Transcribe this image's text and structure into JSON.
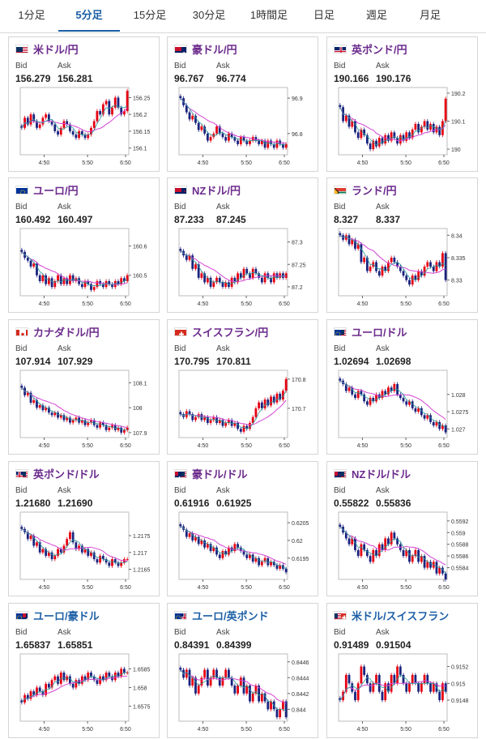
{
  "tabs": [
    {
      "label": "1分足",
      "active": false
    },
    {
      "label": "5分足",
      "active": true
    },
    {
      "label": "15分足",
      "active": false
    },
    {
      "label": "30分足",
      "active": false
    },
    {
      "label": "1時間足",
      "active": false
    },
    {
      "label": "日足",
      "active": false
    },
    {
      "label": "週足",
      "active": false
    },
    {
      "label": "月足",
      "active": false
    }
  ],
  "labels": {
    "bid": "Bid",
    "ask": "Ask"
  },
  "x_ticks": [
    "4:50",
    "5:50",
    "6:50"
  ],
  "colors": {
    "up": "#e60012",
    "down": "#1a237e",
    "ma": "#d445d4",
    "ma2": "#2a9a9a",
    "tab_active": "#1c5fa6",
    "pair_purple": "#6b2a8c",
    "pair_blue": "#1c5fa6"
  },
  "pairs": [
    {
      "name": "米ドル/円",
      "bid": "156.279",
      "ask": "156.281",
      "flag": "us",
      "name_color": "purple",
      "y_ticks": [
        "156.25",
        "156.2",
        "156.15",
        "156.1"
      ],
      "chart_data": {
        "type": "candlestick",
        "ylim": [
          156.08,
          156.28
        ],
        "closes": [
          156.16,
          156.19,
          156.17,
          156.2,
          156.18,
          156.16,
          156.17,
          156.19,
          156.2,
          156.18,
          156.17,
          156.15,
          156.14,
          156.16,
          156.18,
          156.17,
          156.15,
          156.14,
          156.13,
          156.15,
          156.14,
          156.13,
          156.14,
          156.16,
          156.18,
          156.21,
          156.2,
          156.23,
          156.24,
          156.2,
          156.22,
          156.25,
          156.22,
          156.2,
          156.21,
          156.27
        ]
      }
    },
    {
      "name": "豪ドル/円",
      "bid": "96.767",
      "ask": "96.774",
      "flag": "au",
      "name_color": "purple",
      "y_ticks": [
        "96.9",
        "96.8"
      ],
      "chart_data": {
        "type": "candlestick",
        "ylim": [
          96.74,
          96.93
        ],
        "closes": [
          96.9,
          96.88,
          96.86,
          96.84,
          96.85,
          96.83,
          96.81,
          96.82,
          96.8,
          96.78,
          96.79,
          96.8,
          96.82,
          96.8,
          96.79,
          96.78,
          96.8,
          96.79,
          96.78,
          96.77,
          96.79,
          96.78,
          96.77,
          96.78,
          96.79,
          96.78,
          96.77,
          96.78,
          96.76,
          96.78,
          96.77,
          96.76,
          96.78,
          96.77,
          96.76,
          96.77
        ]
      }
    },
    {
      "name": "英ポンド/円",
      "bid": "190.166",
      "ask": "190.176",
      "flag": "uk",
      "name_color": "purple",
      "y_ticks": [
        "190.2",
        "190.1",
        "190"
      ],
      "chart_data": {
        "type": "candlestick",
        "ylim": [
          189.98,
          190.22
        ],
        "closes": [
          190.15,
          190.1,
          190.12,
          190.08,
          190.1,
          190.06,
          190.04,
          190.07,
          190.05,
          190.02,
          190.0,
          190.03,
          190.01,
          190.04,
          190.02,
          190.05,
          190.03,
          190.06,
          190.04,
          190.02,
          190.05,
          190.03,
          190.06,
          190.04,
          190.07,
          190.09,
          190.06,
          190.08,
          190.1,
          190.07,
          190.09,
          190.06,
          190.08,
          190.05,
          190.1,
          190.18
        ]
      }
    },
    {
      "name": "ユーロ/円",
      "bid": "160.492",
      "ask": "160.497",
      "flag": "eu",
      "name_color": "purple",
      "y_ticks": [
        "160.6",
        "160.5"
      ],
      "chart_data": {
        "type": "candlestick",
        "ylim": [
          160.43,
          160.66
        ],
        "closes": [
          160.58,
          160.56,
          160.55,
          160.53,
          160.54,
          160.5,
          160.48,
          160.5,
          160.47,
          160.49,
          160.46,
          160.48,
          160.5,
          160.47,
          160.49,
          160.47,
          160.5,
          160.48,
          160.49,
          160.47,
          160.46,
          160.48,
          160.47,
          160.45,
          160.46,
          160.48,
          160.47,
          160.46,
          160.48,
          160.47,
          160.46,
          160.48,
          160.47,
          160.49,
          160.48,
          160.5
        ]
      }
    },
    {
      "name": "NZドル/円",
      "bid": "87.233",
      "ask": "87.245",
      "flag": "nz",
      "name_color": "purple",
      "y_ticks": [
        "87.3",
        "87.25",
        "87.2"
      ],
      "chart_data": {
        "type": "candlestick",
        "ylim": [
          87.18,
          87.33
        ],
        "closes": [
          87.28,
          87.27,
          87.26,
          87.27,
          87.24,
          87.25,
          87.22,
          87.23,
          87.21,
          87.22,
          87.2,
          87.21,
          87.22,
          87.21,
          87.2,
          87.21,
          87.2,
          87.22,
          87.21,
          87.23,
          87.22,
          87.24,
          87.23,
          87.22,
          87.24,
          87.23,
          87.22,
          87.21,
          87.23,
          87.22,
          87.21,
          87.23,
          87.22,
          87.23,
          87.22,
          87.23
        ]
      }
    },
    {
      "name": "ランド/円",
      "bid": "8.327",
      "ask": "8.337",
      "flag": "za",
      "name_color": "purple",
      "y_ticks": [
        "8.34",
        "8.335",
        "8.33"
      ],
      "chart_data": {
        "type": "candlestick",
        "ylim": [
          8.3265,
          8.3415
        ],
        "closes": [
          8.34,
          8.339,
          8.34,
          8.338,
          8.339,
          8.337,
          8.338,
          8.334,
          8.335,
          8.332,
          8.333,
          8.334,
          8.332,
          8.331,
          8.333,
          8.332,
          8.334,
          8.335,
          8.334,
          8.333,
          8.332,
          8.331,
          8.33,
          8.329,
          8.331,
          8.33,
          8.332,
          8.331,
          8.333,
          8.334,
          8.333,
          8.332,
          8.334,
          8.333,
          8.336,
          8.33
        ]
      }
    },
    {
      "name": "カナダドル/円",
      "bid": "107.914",
      "ask": "107.929",
      "flag": "ca",
      "name_color": "purple",
      "y_ticks": [
        "108.1",
        "108",
        "107.9"
      ],
      "chart_data": {
        "type": "candlestick",
        "ylim": [
          107.88,
          108.15
        ],
        "closes": [
          108.08,
          108.05,
          108.06,
          108.02,
          108.03,
          108.0,
          108.01,
          107.99,
          108.0,
          107.98,
          107.97,
          107.98,
          107.96,
          107.97,
          107.95,
          107.96,
          107.94,
          107.95,
          107.96,
          107.94,
          107.95,
          107.93,
          107.94,
          107.95,
          107.93,
          107.92,
          107.94,
          107.93,
          107.91,
          107.92,
          107.93,
          107.91,
          107.92,
          107.9,
          107.91,
          107.92
        ]
      }
    },
    {
      "name": "スイスフラン/円",
      "bid": "170.795",
      "ask": "170.811",
      "flag": "ch",
      "name_color": "purple",
      "y_ticks": [
        "170.8",
        "170.7"
      ],
      "chart_data": {
        "type": "candlestick",
        "ylim": [
          170.6,
          170.83
        ],
        "closes": [
          170.68,
          170.67,
          170.69,
          170.68,
          170.66,
          170.67,
          170.68,
          170.66,
          170.67,
          170.65,
          170.66,
          170.67,
          170.65,
          170.66,
          170.64,
          170.65,
          170.66,
          170.64,
          170.65,
          170.63,
          170.62,
          170.64,
          170.63,
          170.65,
          170.67,
          170.7,
          170.72,
          170.7,
          170.73,
          170.71,
          170.74,
          170.72,
          170.75,
          170.73,
          170.76,
          170.8
        ]
      }
    },
    {
      "name": "ユーロ/ドル",
      "bid": "1.02694",
      "ask": "1.02698",
      "flag": "eu-us",
      "name_color": "purple",
      "y_ticks": [
        "1.028",
        "1.0275",
        "1.027"
      ],
      "chart_data": {
        "type": "candlestick",
        "ylim": [
          1.02675,
          1.0287
        ],
        "closes": [
          1.0284,
          1.0283,
          1.0281,
          1.0282,
          1.028,
          1.0279,
          1.0281,
          1.028,
          1.0278,
          1.0277,
          1.0279,
          1.0278,
          1.028,
          1.0279,
          1.0281,
          1.028,
          1.0282,
          1.0281,
          1.0283,
          1.028,
          1.0279,
          1.0278,
          1.0277,
          1.0278,
          1.0276,
          1.0275,
          1.0276,
          1.0274,
          1.0273,
          1.0274,
          1.0272,
          1.0271,
          1.0272,
          1.027,
          1.0271,
          1.0269
        ]
      }
    },
    {
      "name": "英ポンド/ドル",
      "bid": "1.21680",
      "ask": "1.21690",
      "flag": "uk-us",
      "name_color": "purple",
      "y_ticks": [
        "1.2175",
        "1.217",
        "1.2165"
      ],
      "chart_data": {
        "type": "candlestick",
        "ylim": [
          1.2162,
          1.2182
        ],
        "closes": [
          1.2177,
          1.2176,
          1.2174,
          1.2175,
          1.2172,
          1.2173,
          1.217,
          1.2171,
          1.2169,
          1.217,
          1.2168,
          1.2169,
          1.2171,
          1.217,
          1.2172,
          1.2174,
          1.2176,
          1.2173,
          1.2171,
          1.2172,
          1.217,
          1.2171,
          1.2169,
          1.217,
          1.2168,
          1.2167,
          1.2169,
          1.2168,
          1.2167,
          1.2166,
          1.2168,
          1.2167,
          1.2166,
          1.2167,
          1.2168,
          1.2168
        ]
      }
    },
    {
      "name": "豪ドル/ドル",
      "bid": "0.61916",
      "ask": "0.61925",
      "flag": "au-us",
      "name_color": "purple",
      "y_ticks": [
        "0.6205",
        "0.62",
        "0.6195"
      ],
      "chart_data": {
        "type": "candlestick",
        "ylim": [
          0.6189,
          0.6208
        ],
        "closes": [
          0.6204,
          0.6203,
          0.6201,
          0.6202,
          0.62,
          0.6201,
          0.6199,
          0.62,
          0.6198,
          0.6199,
          0.6197,
          0.6198,
          0.6196,
          0.6195,
          0.6197,
          0.6196,
          0.6198,
          0.6197,
          0.6199,
          0.6198,
          0.6197,
          0.6196,
          0.6195,
          0.6196,
          0.6194,
          0.6195,
          0.6193,
          0.6194,
          0.6195,
          0.6193,
          0.6194,
          0.6193,
          0.6192,
          0.6193,
          0.6192,
          0.6191
        ]
      }
    },
    {
      "name": "NZドル/ドル",
      "bid": "0.55822",
      "ask": "0.55836",
      "flag": "nz-us",
      "name_color": "purple",
      "y_ticks": [
        "0.5592",
        "0.559",
        "0.5588",
        "0.5586",
        "0.5584"
      ],
      "chart_data": {
        "type": "candlestick",
        "ylim": [
          0.5582,
          0.55935
        ],
        "closes": [
          0.5591,
          0.559,
          0.5589,
          0.5588,
          0.5589,
          0.5587,
          0.5586,
          0.5588,
          0.5587,
          0.5586,
          0.5585,
          0.5587,
          0.5586,
          0.5588,
          0.5587,
          0.5589,
          0.5588,
          0.559,
          0.5589,
          0.5588,
          0.5587,
          0.5586,
          0.5587,
          0.5585,
          0.5586,
          0.5587,
          0.5585,
          0.5586,
          0.5584,
          0.5585,
          0.5584,
          0.5585,
          0.5583,
          0.5584,
          0.5583,
          0.5582
        ]
      }
    },
    {
      "name": "ユーロ/豪ドル",
      "bid": "1.65837",
      "ask": "1.65851",
      "flag": "eu-au",
      "name_color": "blue",
      "y_ticks": [
        "1.6585",
        "1.658",
        "1.6575"
      ],
      "chart_data": {
        "type": "candlestick",
        "ylim": [
          1.6571,
          1.6589
        ],
        "closes": [
          1.6576,
          1.6578,
          1.6577,
          1.6579,
          1.6578,
          1.658,
          1.6579,
          1.6578,
          1.6581,
          1.658,
          1.6582,
          1.6583,
          1.6581,
          1.6584,
          1.6582,
          1.6583,
          1.6581,
          1.658,
          1.6582,
          1.6581,
          1.6583,
          1.6582,
          1.6584,
          1.6583,
          1.6582,
          1.6581,
          1.6583,
          1.6582,
          1.6584,
          1.6583,
          1.6582,
          1.6584,
          1.6583,
          1.6585,
          1.6584,
          1.6584
        ]
      }
    },
    {
      "name": "ユーロ/英ポンド",
      "bid": "0.84391",
      "ask": "0.84399",
      "flag": "eu-uk",
      "name_color": "blue",
      "y_ticks": [
        "0.8446",
        "0.8444",
        "0.8442",
        "0.844"
      ],
      "chart_data": {
        "type": "candlestick",
        "ylim": [
          0.84385,
          0.8447
        ],
        "closes": [
          0.8445,
          0.8444,
          0.8445,
          0.8443,
          0.8444,
          0.8442,
          0.8443,
          0.8444,
          0.8445,
          0.8443,
          0.8444,
          0.8445,
          0.8444,
          0.8443,
          0.8444,
          0.8445,
          0.8444,
          0.8443,
          0.8442,
          0.8443,
          0.8444,
          0.8442,
          0.8443,
          0.8441,
          0.8442,
          0.8443,
          0.8441,
          0.8442,
          0.8441,
          0.844,
          0.8441,
          0.844,
          0.8439,
          0.844,
          0.8441,
          0.8439
        ]
      }
    },
    {
      "name": "米ドル/スイスフラン",
      "bid": "0.91489",
      "ask": "0.91504",
      "flag": "us-ch",
      "name_color": "blue",
      "y_ticks": [
        "0.9152",
        "0.915",
        "0.9148"
      ],
      "chart_data": {
        "type": "candlestick",
        "ylim": [
          0.91455,
          0.91535
        ],
        "closes": [
          0.9148,
          0.9149,
          0.9151,
          0.915,
          0.9149,
          0.9148,
          0.915,
          0.9152,
          0.9151,
          0.915,
          0.9149,
          0.915,
          0.9151,
          0.9149,
          0.9148,
          0.915,
          0.9149,
          0.9151,
          0.915,
          0.9152,
          0.9151,
          0.915,
          0.9149,
          0.915,
          0.9151,
          0.915,
          0.9149,
          0.915,
          0.9151,
          0.915,
          0.9149,
          0.915,
          0.9149,
          0.9148,
          0.915,
          0.9149
        ]
      }
    }
  ]
}
